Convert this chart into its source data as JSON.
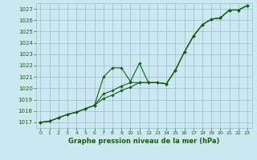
{
  "x": [
    0,
    1,
    2,
    3,
    4,
    5,
    6,
    7,
    8,
    9,
    10,
    11,
    12,
    13,
    14,
    15,
    16,
    17,
    18,
    19,
    20,
    21,
    22,
    23
  ],
  "line1": [
    1017.0,
    1017.1,
    1017.4,
    1017.7,
    1017.9,
    1018.2,
    1018.5,
    1021.0,
    1021.8,
    1021.8,
    1020.6,
    1022.2,
    1020.5,
    1020.5,
    1020.4,
    1021.6,
    1023.2,
    1024.6,
    1025.6,
    1026.1,
    1026.2,
    1026.9,
    1026.9,
    1027.3
  ],
  "line2": [
    1017.0,
    1017.1,
    1017.4,
    1017.7,
    1017.9,
    1018.2,
    1018.5,
    1019.1,
    1019.4,
    1019.8,
    1020.1,
    1020.5,
    1020.5,
    1020.5,
    1020.4,
    1021.6,
    1023.2,
    1024.6,
    1025.6,
    1026.1,
    1026.2,
    1026.9,
    1026.9,
    1027.3
  ],
  "line3": [
    1017.0,
    1017.1,
    1017.4,
    1017.7,
    1017.9,
    1018.2,
    1018.5,
    1019.5,
    1019.8,
    1020.2,
    1020.5,
    1020.5,
    1020.5,
    1020.5,
    1020.4,
    1021.6,
    1023.2,
    1024.6,
    1025.6,
    1026.1,
    1026.2,
    1026.9,
    1026.9,
    1027.3
  ],
  "line_color": "#1a5c1a",
  "marker": "D",
  "marker_size": 1.8,
  "line_width": 0.8,
  "ylim": [
    1016.5,
    1027.5
  ],
  "xlim": [
    -0.5,
    23.5
  ],
  "yticks": [
    1017,
    1018,
    1019,
    1020,
    1021,
    1022,
    1023,
    1024,
    1025,
    1026,
    1027
  ],
  "xticks": [
    0,
    1,
    2,
    3,
    4,
    5,
    6,
    7,
    8,
    9,
    10,
    11,
    12,
    13,
    14,
    15,
    16,
    17,
    18,
    19,
    20,
    21,
    22,
    23
  ],
  "xlabel": "Graphe pression niveau de la mer (hPa)",
  "bg_color": "#cce8f0",
  "grid_color": "#99bbcc",
  "label_color": "#1a5c1a",
  "tick_color": "#1a5c1a"
}
